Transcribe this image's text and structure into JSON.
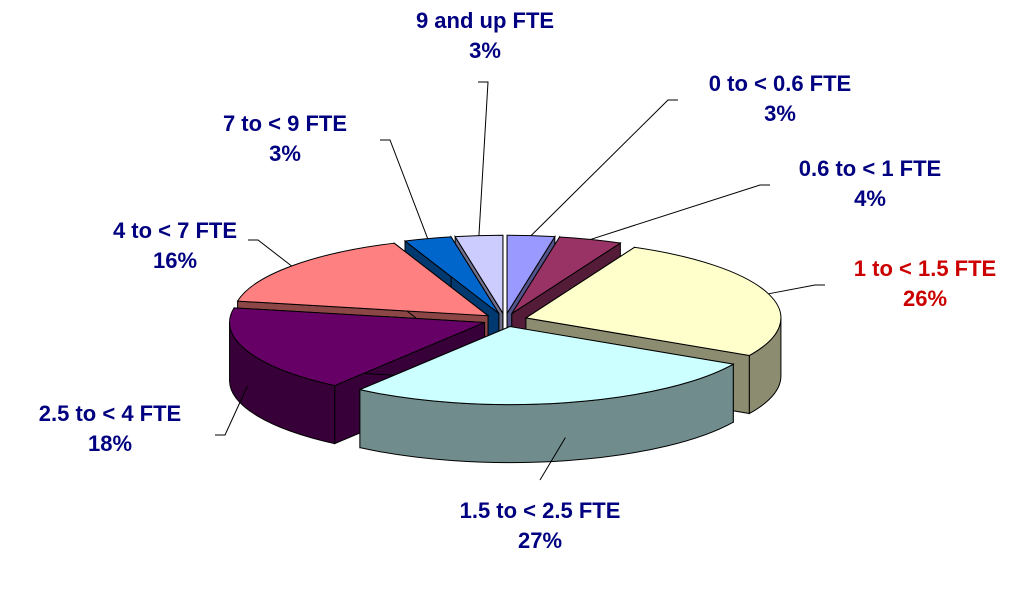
{
  "chart_data": {
    "type": "pie",
    "categories": [
      "0 to < 0.6 FTE",
      "0.6 to < 1 FTE",
      "1 to < 1.5 FTE",
      "1.5 to < 2.5 FTE",
      "2.5 to < 4 FTE",
      "4 to < 7 FTE",
      "7 to < 9 FTE",
      "9 and up FTE"
    ],
    "values": [
      3,
      4,
      26,
      27,
      18,
      16,
      3,
      3
    ],
    "value_labels": [
      "3%",
      "4%",
      "26%",
      "27%",
      "18%",
      "16%",
      "3%",
      "3%"
    ],
    "colors": [
      "#9999ff",
      "#993366",
      "#ffffcc",
      "#ccffff",
      "#660066",
      "#ff8080",
      "#0066cc",
      "#ccccff"
    ],
    "label_colors": [
      "#000080",
      "#000080",
      "#cc0000",
      "#000080",
      "#000080",
      "#000080",
      "#000080",
      "#000080"
    ]
  }
}
